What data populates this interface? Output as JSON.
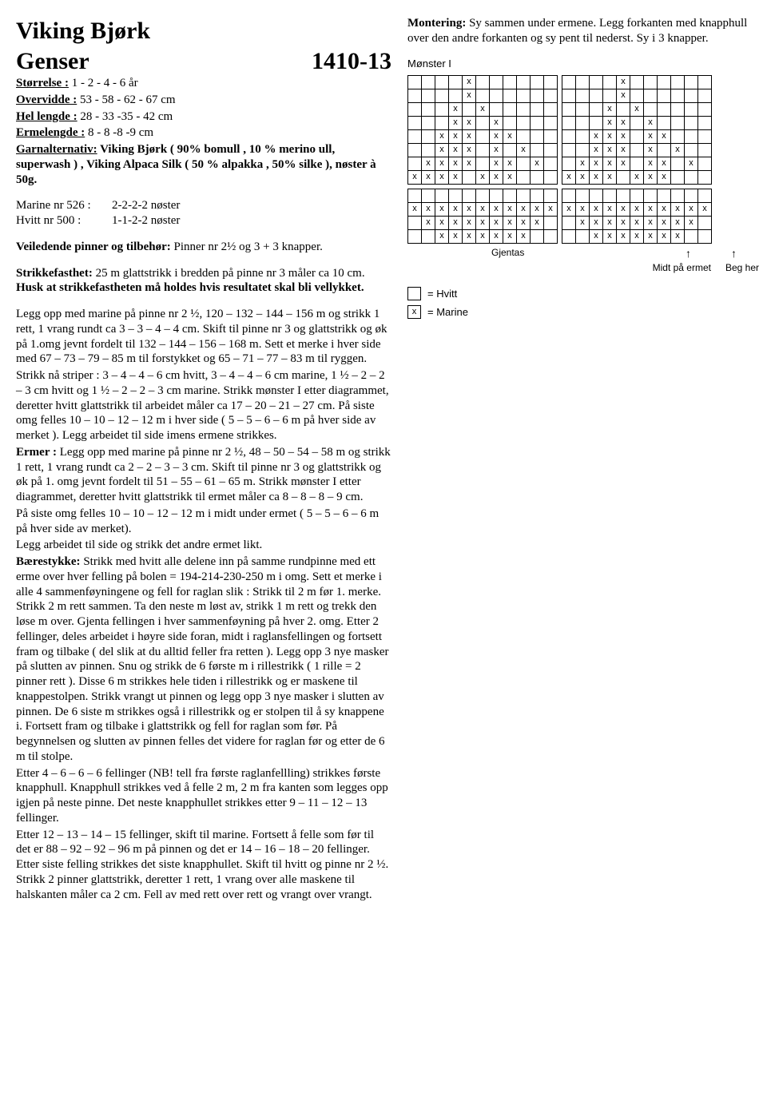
{
  "header": {
    "title": "Viking Bjørk",
    "subtitle": "Genser",
    "pattern_code": "1410-13"
  },
  "specs": {
    "size_label": "Størrelse :",
    "size_value": " 1 - 2 - 4 - 6 år",
    "overvidde_label": "Overvidde :",
    "overvidde_value": "  53 - 58 - 62 - 67 cm",
    "hel_lengde_label": "Hel lengde :",
    "hel_lengde_value": " 28 - 33 -35 - 42 cm",
    "ermelengde_label": "Ermelengde :",
    "ermelengde_value": "   8 - 8 -8 -9 cm",
    "garnalternativ_label": "Garnalternativ:",
    "garnalternativ_value": " Viking Bjørk ( 90% bomull , 10 % merino ull, superwash ) , Viking Alpaca Silk ( 50 % alpakka , 50% silke ), nøster à 50g."
  },
  "yarn": {
    "marine_label": "Marine nr 526 :",
    "marine_value": "2-2-2-2 nøster",
    "hvitt_label": "Hvitt nr 500 :",
    "hvitt_value": "1-1-2-2 nøster"
  },
  "needles": {
    "label": "Veiledende pinner og tilbehør:",
    "value": "  Pinner nr 2½ og 3 + 3 knapper."
  },
  "gauge": {
    "label": " Strikkefasthet:",
    "value": " 25 m glattstrikk i bredden på pinne nr 3 måler ca 10 cm. ",
    "husk": "Husk at strikkefastheten må holdes hvis resultatet skal bli vellykket."
  },
  "body": {
    "p1": "Legg opp med marine på pinne nr 2 ½,  120 – 132 – 144 – 156 m og strikk 1 rett, 1 vrang rundt  ca 3 – 3 – 4 – 4 cm.  Skift til pinne nr 3 og glattstrikk og øk på 1.omg  jevnt fordelt til 132 – 144 – 156 – 168 m. Sett et merke i hver side med 67 – 73 – 79 – 85 m til forstykket og 65 – 71 – 77 – 83 m til ryggen.",
    "p2": "Strikk nå striper : 3 – 4 – 4 – 6 cm hvitt, 3 – 4 – 4 – 6 cm marine, 1 ½ – 2 – 2 – 3 cm hvitt og 1 ½ – 2 – 2 – 3 cm marine. Strikk mønster I etter diagrammet, deretter hvitt glattstrikk til arbeidet måler ca 17 – 20 – 21 – 27 cm.  På siste omg felles 10 – 10 – 12 – 12  m i hver side ( 5 – 5 – 6 – 6  m på hver side av merket ). Legg arbeidet til side imens ermene strikkes.",
    "ermer_label": "Ermer :",
    "ermer": "  Legg opp med marine på pinne nr 2 ½,  48 – 50 – 54 – 58 m og strikk 1 rett, 1 vrang rundt ca 2 – 2 – 3 – 3 cm. Skift til pinne nr 3 og glattstrikk og øk på 1. omg jevnt fordelt til 51 – 55 – 61 – 65 m. Strikk mønster I etter diagrammet, deretter hvitt glattstrikk til ermet måler ca 8 – 8 – 8 – 9 cm.",
    "ermer2": "På siste omg felles 10 – 10 – 12 – 12  m i midt under ermet ( 5 – 5 – 6 – 6  m på hver side av merket).",
    "ermer3": "Legg arbeidet til side og strikk det andre ermet likt.",
    "baere_label": "Bærestykke:",
    "baere": " Strikk med hvitt  alle delene inn på samme rundpinne med ett erme over hver felling på bolen =  194-214-230-250 m i omg. Sett et merke i alle 4 sammenføyningene og fell for raglan slik : Strikk til 2 m før 1. merke. Strikk 2 m rett sammen. Ta den neste m løst av, strikk 1 m rett og trekk den løse m over. Gjenta fellingen i hver sammenføyning på hver 2. omg. Etter 2 fellinger, deles arbeidet i høyre side foran, midt i raglansfellingen og fortsett fram og tilbake ( del slik at du alltid feller fra retten ). Legg opp 3 nye masker på slutten av pinnen. Snu og strikk de 6 første m i rillestrikk ( 1 rille = 2 pinner rett ). Disse 6 m strikkes hele tiden i rillestrikk og er maskene til knappestolpen. Strikk vrangt ut pinnen og legg opp 3 nye masker i slutten av pinnen. De 6 siste m strikkes også i rillestrikk og er stolpen til å sy knappene i. Fortsett fram og tilbake i glattstrikk og fell for raglan som før. På begynnelsen og slutten av pinnen felles det videre for raglan før og etter de 6 m til stolpe.",
    "baere2": "Etter 4 – 6 – 6 – 6 fellinger (NB! tell fra første raglanfellling) strikkes første  knapphull. Knapphull strikkes ved å felle 2 m, 2 m fra kanten som legges opp igjen på neste pinne. Det neste knapphullet strikkes etter 9 – 11 – 12 – 13 fellinger.",
    "baere3": "Etter 12 – 13 – 14 – 15 fellinger, skift til marine. Fortsett å felle som før til det er 88 – 92 – 92 – 96 m på pinnen og det er 14 – 16 – 18 – 20 fellinger. Etter siste felling strikkes det siste knapphullet. Skift til hvitt og pinne nr 2 ½. Strikk 2 pinner glattstrikk, deretter 1 rett, 1 vrang over alle maskene til halskanten måler ca 2 cm. Fell av med rett over rett og vrangt over vrangt."
  },
  "montering": {
    "label": "Montering:",
    "value": " Sy sammen under ermene. Legg forkanten med knapphull over den andre forkanten og sy pent til nederst. Sy i 3 knapper."
  },
  "chart": {
    "title": "Mønster I",
    "gjentas": "Gjentas",
    "midt": "Midt på ermet",
    "beg": "Beg her",
    "legend_hvitt": "=  Hvitt",
    "legend_marine": "=  Marine",
    "x": "x",
    "pattern": [
      "....x......|....x......",
      "....x......|....x......",
      "...x.x.....|...x.x.....",
      "...xx.x....|...xx.x....",
      "..xxx.xx...|..xxx.xx...",
      "..xxx.x.x..|..xxx.x.x..",
      ".xxxx.xx.x.|.xxxx.xx.x.",
      "xxxx.xxx...|xxxx.xxx...",
      "...........|...........",
      "xxxxxxxxxxx|xxxxxxxxxxx",
      ".xxxxxxxxx.|.xxxxxxxxx.",
      "..xxxxxxx..|..xxxxxxx.."
    ]
  }
}
